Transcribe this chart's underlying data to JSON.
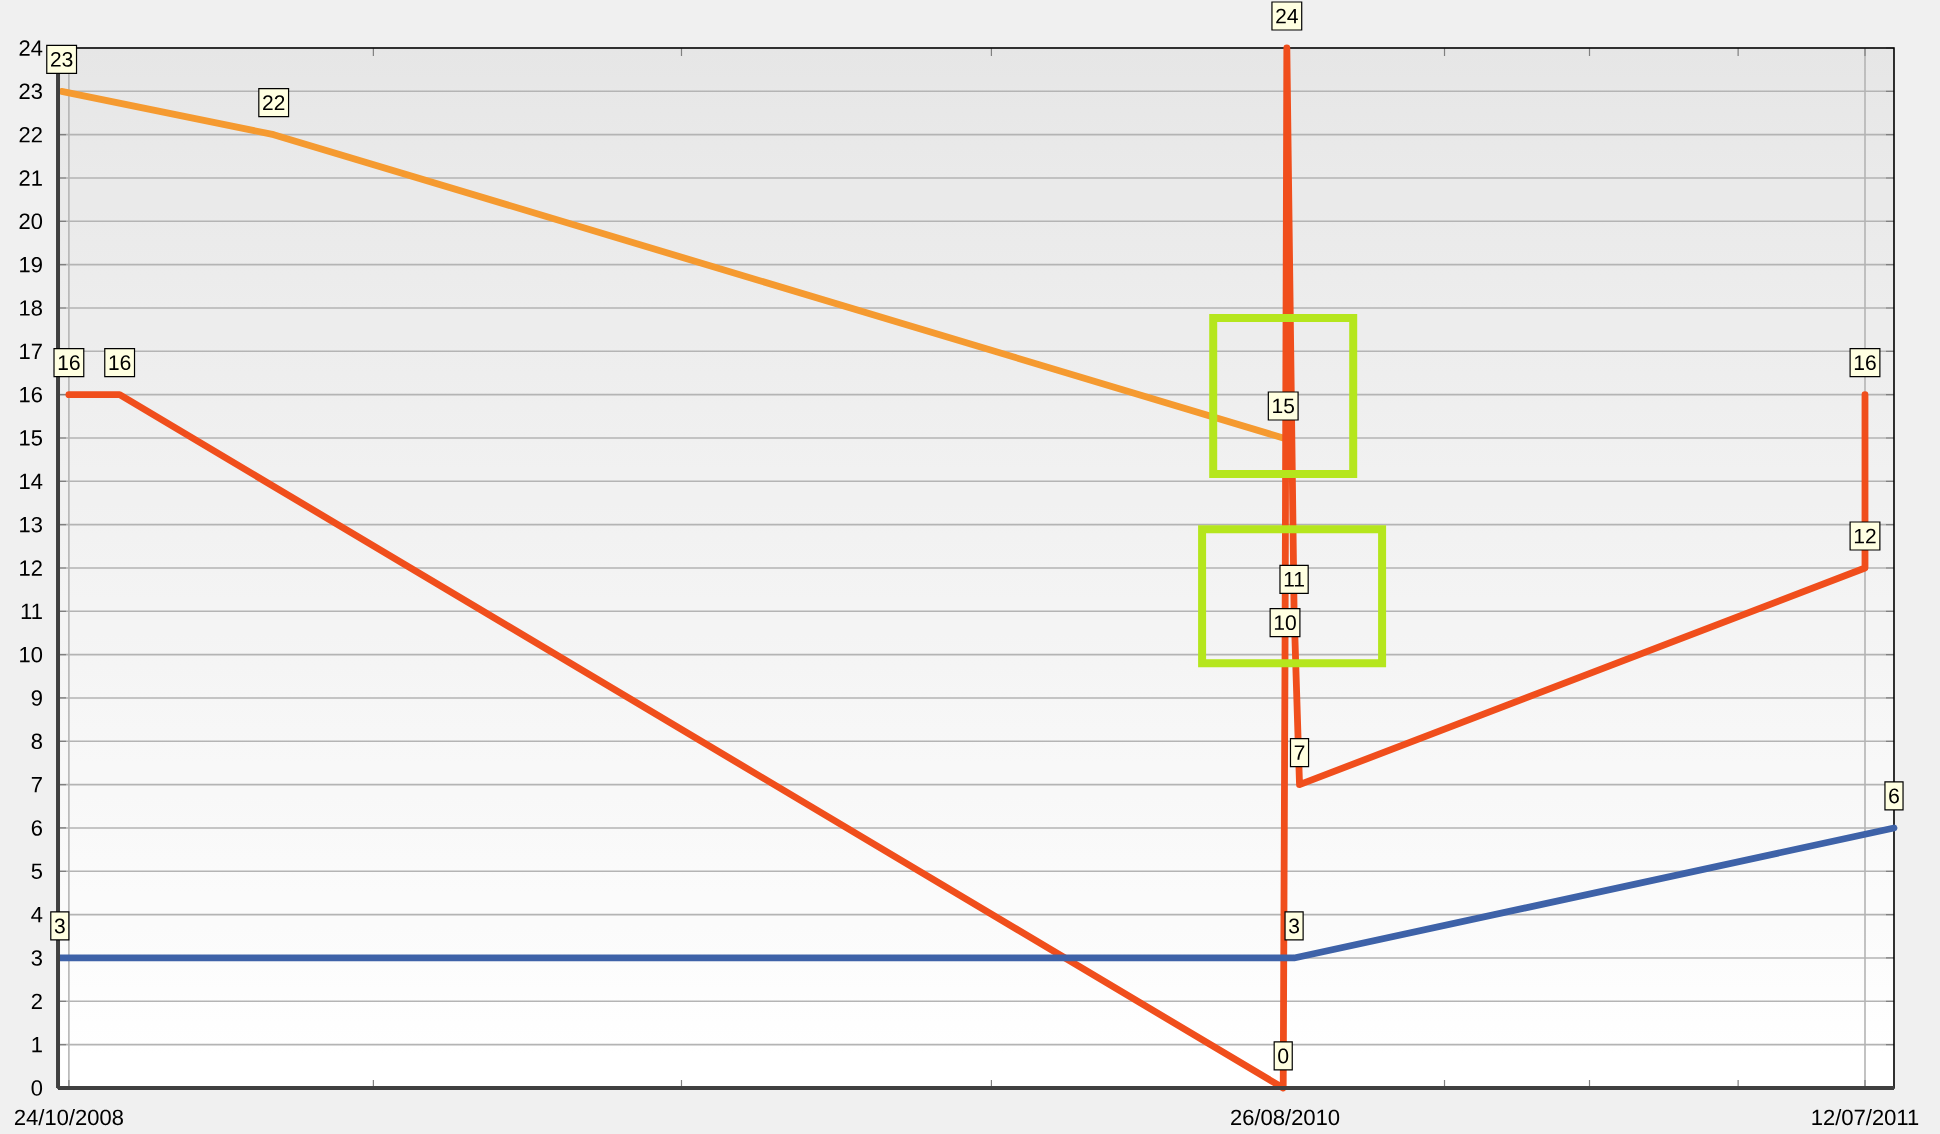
{
  "chart_data": {
    "type": "line",
    "xlim": [
      "2008-10-18",
      "2011-07-28"
    ],
    "xticks": [
      {
        "value": "2008-10-24",
        "label": "24/10/2008"
      },
      {
        "value": "2009-04-10",
        "label": null
      },
      {
        "value": "2009-09-27",
        "label": null
      },
      {
        "value": "2010-03-17",
        "label": null
      },
      {
        "value": "2010-08-26",
        "label": "26/08/2010"
      },
      {
        "value": "2010-11-22",
        "label": null
      },
      {
        "value": "2011-02-10",
        "label": null
      },
      {
        "value": "2011-05-03",
        "label": null
      },
      {
        "value": "2011-07-12",
        "label": "12/07/2011"
      }
    ],
    "ylim": [
      0,
      24
    ],
    "yticks": [
      0,
      1,
      2,
      3,
      4,
      5,
      6,
      7,
      8,
      9,
      10,
      11,
      12,
      13,
      14,
      15,
      16,
      17,
      18,
      19,
      20,
      21,
      22,
      23,
      24
    ],
    "grid": true,
    "data_labels": true,
    "series": [
      {
        "color": "#f59a30",
        "x": [
          "2008-10-20",
          "2009-02-14",
          "2010-08-25"
        ],
        "values": [
          23,
          22,
          15
        ]
      },
      {
        "color": "#f04e1c",
        "x": [
          "2008-10-24",
          "2008-11-21",
          "2010-08-25",
          "2010-08-26",
          "2010-08-27",
          "2010-08-31",
          "2010-09-03",
          "2011-07-12",
          "2011-07-12"
        ],
        "values": [
          16,
          16,
          0,
          10,
          24,
          11,
          7,
          12,
          16
        ]
      },
      {
        "color": "#3e62a8",
        "x": [
          "2008-10-19",
          "2010-08-31",
          "2011-07-28"
        ],
        "values": [
          3,
          3,
          6
        ]
      }
    ]
  }
}
